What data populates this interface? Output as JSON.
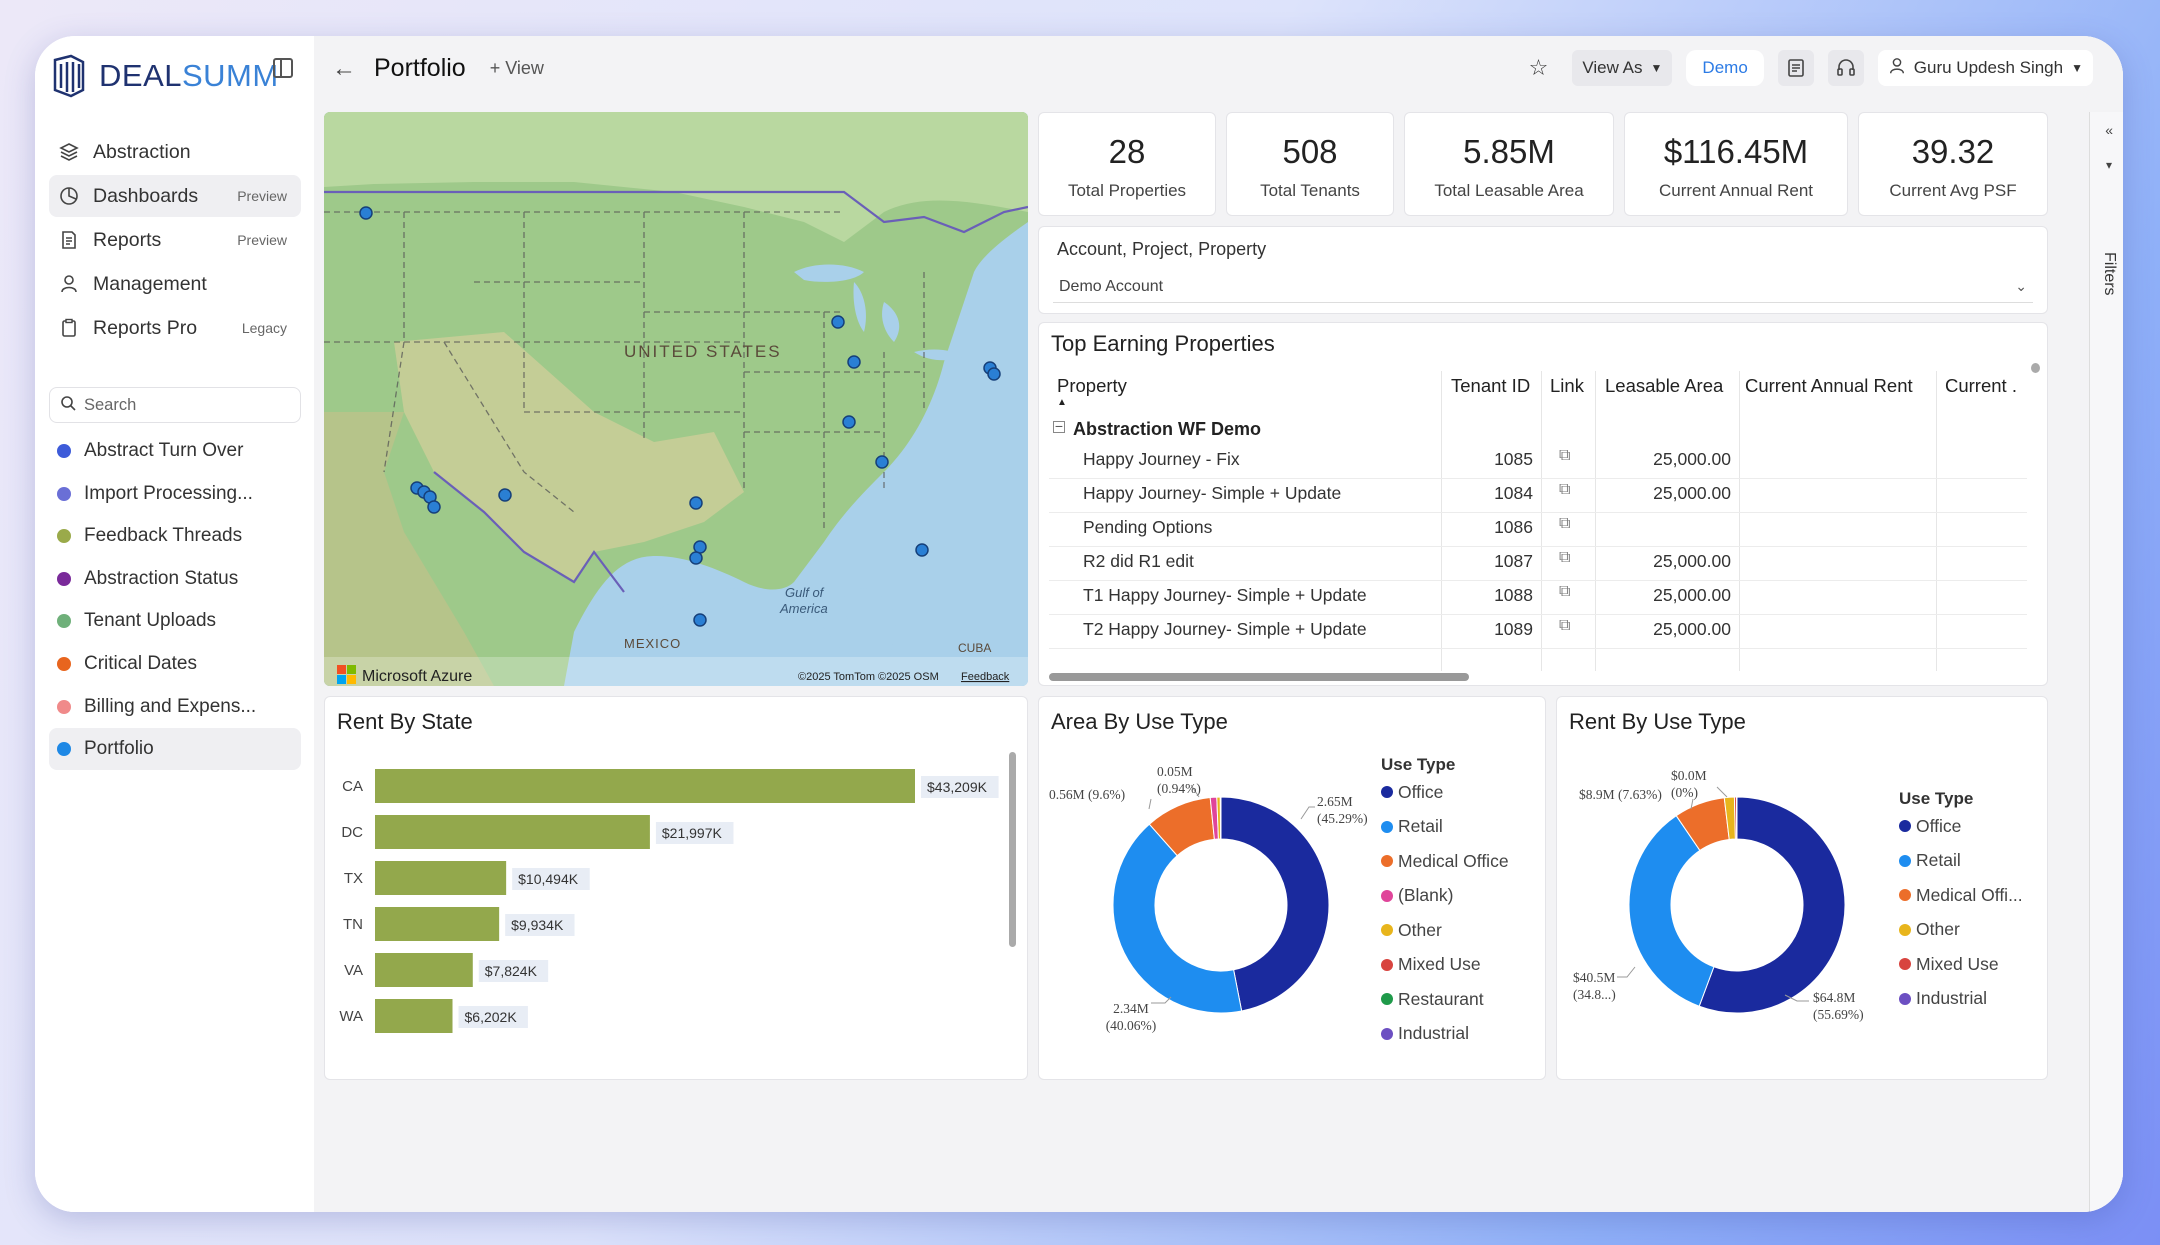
{
  "app": {
    "logo_left": "DEAL",
    "logo_right": "SUMM"
  },
  "nav": [
    {
      "label": "Abstraction",
      "badge": "",
      "icon": "layers-icon"
    },
    {
      "label": "Dashboards",
      "badge": "Preview",
      "icon": "pie-chart-icon"
    },
    {
      "label": "Reports",
      "badge": "Preview",
      "icon": "document-icon"
    },
    {
      "label": "Management",
      "badge": "",
      "icon": "user-icon"
    },
    {
      "label": "Reports Pro",
      "badge": "Legacy",
      "icon": "clipboard-icon"
    }
  ],
  "search": {
    "placeholder": "Search"
  },
  "reports": [
    {
      "label": "Abstract Turn Over",
      "color": "#3d5bd9"
    },
    {
      "label": "Import Processing...",
      "color": "#6a6fd6"
    },
    {
      "label": "Feedback Threads",
      "color": "#9aaa4a"
    },
    {
      "label": "Abstraction Status",
      "color": "#7a2a9a"
    },
    {
      "label": "Tenant Uploads",
      "color": "#6fb07a"
    },
    {
      "label": "Critical Dates",
      "color": "#e8651e"
    },
    {
      "label": "Billing and Expens...",
      "color": "#f08a8a"
    },
    {
      "label": "Portfolio",
      "color": "#1e88e5"
    }
  ],
  "header": {
    "title": "Portfolio",
    "add_view": "+ View",
    "view_as": "View As",
    "demo": "Demo",
    "user": "Guru Updesh Singh"
  },
  "kpis": [
    {
      "value": "28",
      "label": "Total Properties"
    },
    {
      "value": "508",
      "label": "Total Tenants"
    },
    {
      "value": "5.85M",
      "label": "Total Leasable Area"
    },
    {
      "value": "$116.45M",
      "label": "Current Annual Rent"
    },
    {
      "value": "39.32",
      "label": "Current Avg PSF"
    }
  ],
  "filter": {
    "label": "Account, Project, Property",
    "value": "Demo Account"
  },
  "map": {
    "country_label": "UNITED STATES",
    "gulf_label_1": "Gulf of",
    "gulf_label_2": "America",
    "mexico_label": "MEXICO",
    "cuba_label": "CUBA",
    "brand": "Microsoft Azure",
    "copyright": "©2025 TomTom ©2025 OSM",
    "feedback": "Feedback"
  },
  "top_earning": {
    "title": "Top Earning Properties",
    "columns": [
      "Property",
      "Tenant ID",
      "Link",
      "Leasable Area",
      "Current Annual Rent",
      "Current ."
    ],
    "group": "Abstraction WF Demo",
    "rows": [
      {
        "property": "Happy Journey - Fix",
        "tenant_id": "1085",
        "area": "25,000.00"
      },
      {
        "property": "Happy Journey- Simple + Update",
        "tenant_id": "1084",
        "area": "25,000.00"
      },
      {
        "property": "Pending Options",
        "tenant_id": "1086",
        "area": ""
      },
      {
        "property": "R2 did R1 edit",
        "tenant_id": "1087",
        "area": "25,000.00"
      },
      {
        "property": "T1 Happy Journey- Simple + Update",
        "tenant_id": "1088",
        "area": "25,000.00"
      },
      {
        "property": "T2 Happy Journey- Simple + Update",
        "tenant_id": "1089",
        "area": "25,000.00"
      }
    ]
  },
  "filters_pane": {
    "label": "Filters"
  },
  "chart_data": [
    {
      "type": "bar",
      "title": "Rent By State",
      "orientation": "horizontal",
      "categories": [
        "CA",
        "DC",
        "TX",
        "TN",
        "VA",
        "WA"
      ],
      "values": [
        43209,
        21997,
        10494,
        9934,
        7824,
        6202
      ],
      "data_labels": [
        "$43,209K",
        "$21,997K",
        "$10,494K",
        "$9,934K",
        "$7,824K",
        "$6,202K"
      ],
      "color": "#93a84c"
    },
    {
      "type": "pie",
      "title": "Area By Use Type",
      "legend_title": "Use Type",
      "categories": [
        "Office",
        "Retail",
        "Medical Office",
        "(Blank)",
        "Other",
        "Mixed Use",
        "Restaurant",
        "Industrial"
      ],
      "values": [
        45.29,
        40.06,
        9.6,
        0.94,
        0.5,
        0.05,
        0.03,
        0.02
      ],
      "colors": [
        "#1a2a9e",
        "#1e8df0",
        "#ec6e2a",
        "#e0459a",
        "#e8b51c",
        "#d8443f",
        "#1f9a4a",
        "#6c4fc2"
      ],
      "labels": [
        {
          "l1": "2.65M",
          "l2": "(45.29%)"
        },
        {
          "l1": "2.34M",
          "l2": "(40.06%)"
        },
        {
          "l1": "0.56M (9.6%)",
          "l2": ""
        },
        {
          "l1": "0.05M",
          "l2": "(0.94%)"
        }
      ]
    },
    {
      "type": "pie",
      "title": "Rent By Use Type",
      "legend_title": "Use Type",
      "categories": [
        "Office",
        "Retail",
        "Medical Offi...",
        "Other",
        "Mixed Use",
        "Industrial"
      ],
      "values": [
        55.69,
        34.8,
        7.63,
        1.5,
        0.3,
        0.08
      ],
      "colors": [
        "#1a2a9e",
        "#1e8df0",
        "#ec6e2a",
        "#e8b51c",
        "#d8443f",
        "#6c4fc2"
      ],
      "labels": [
        {
          "l1": "$64.8M",
          "l2": "(55.69%)"
        },
        {
          "l1": "$40.5M",
          "l2": "(34.8...)"
        },
        {
          "l1": "$8.9M (7.63%)",
          "l2": ""
        },
        {
          "l1": "$0.0M",
          "l2": "(0%)"
        }
      ]
    }
  ]
}
